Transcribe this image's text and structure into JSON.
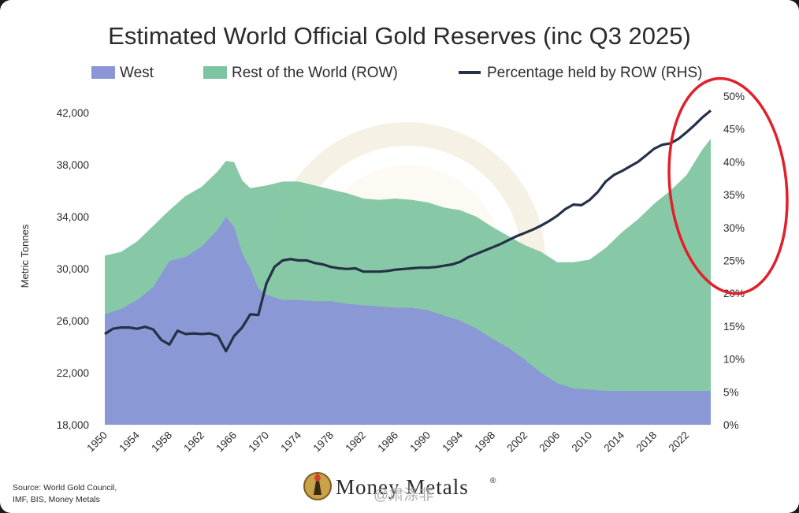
{
  "colors": {
    "west": "#8a96d8",
    "row": "#7dc4a0",
    "line": "#243147",
    "highlight": "#e0202a",
    "text": "#2b2b2b"
  },
  "source": {
    "line1": "Source: World Gold Council,",
    "line2": "IMF, BIS, Money Metals"
  },
  "logo": {
    "text": "Money Metals",
    "reg": "®"
  },
  "watermark": {
    "text": "@肃涤非"
  },
  "chart_data": {
    "type": "area",
    "title": "Estimated World Official Gold Reserves (inc Q3 2025)",
    "ylabel": "Metric Tonnes",
    "legend_placement": "top",
    "ylim": [
      18000,
      44000
    ],
    "y2lim": [
      0,
      50
    ],
    "xlim": [
      1950,
      2025
    ],
    "yticks": [
      18000,
      22000,
      26000,
      30000,
      34000,
      38000,
      42000
    ],
    "ytick_labels": [
      "18,000",
      "22,000",
      "26,000",
      "30,000",
      "34,000",
      "38,000",
      "42,000"
    ],
    "y2ticks": [
      0,
      5,
      10,
      15,
      20,
      25,
      30,
      35,
      40,
      45,
      50
    ],
    "y2tick_labels": [
      "0%",
      "5%",
      "10%",
      "15%",
      "20%",
      "25%",
      "30%",
      "35%",
      "40%",
      "45%",
      "50%"
    ],
    "xticks": [
      1950,
      1954,
      1958,
      1962,
      1966,
      1970,
      1974,
      1978,
      1982,
      1986,
      1990,
      1994,
      1998,
      2002,
      2006,
      2010,
      2014,
      2018,
      2022
    ],
    "xtick_labels": [
      "1950",
      "1954",
      "1958",
      "1962",
      "1966",
      "1970",
      "1974",
      "1978",
      "1982",
      "1986",
      "1990",
      "1994",
      "1998",
      "2002",
      "2006",
      "2010",
      "2014",
      "2018",
      "2022"
    ],
    "series": [
      {
        "name": "West",
        "kind": "area",
        "color": "#8a96d8",
        "points": [
          [
            1950,
            26500
          ],
          [
            1952,
            26900
          ],
          [
            1954,
            27600
          ],
          [
            1956,
            28600
          ],
          [
            1958,
            30600
          ],
          [
            1960,
            30900
          ],
          [
            1962,
            31700
          ],
          [
            1964,
            33000
          ],
          [
            1965,
            34000
          ],
          [
            1966,
            33200
          ],
          [
            1967,
            31200
          ],
          [
            1968,
            30000
          ],
          [
            1969,
            28500
          ],
          [
            1970,
            28000
          ],
          [
            1972,
            27600
          ],
          [
            1974,
            27600
          ],
          [
            1976,
            27500
          ],
          [
            1978,
            27500
          ],
          [
            1980,
            27300
          ],
          [
            1982,
            27200
          ],
          [
            1984,
            27100
          ],
          [
            1986,
            27000
          ],
          [
            1988,
            27000
          ],
          [
            1990,
            26800
          ],
          [
            1992,
            26400
          ],
          [
            1994,
            26000
          ],
          [
            1996,
            25400
          ],
          [
            1998,
            24600
          ],
          [
            2000,
            23900
          ],
          [
            2002,
            23000
          ],
          [
            2004,
            22000
          ],
          [
            2006,
            21200
          ],
          [
            2008,
            20800
          ],
          [
            2010,
            20700
          ],
          [
            2012,
            20600
          ],
          [
            2014,
            20600
          ],
          [
            2016,
            20600
          ],
          [
            2018,
            20600
          ],
          [
            2020,
            20600
          ],
          [
            2022,
            20600
          ],
          [
            2025,
            20600
          ]
        ]
      },
      {
        "name": "Rest of the World (ROW)",
        "kind": "area",
        "color": "#7dc4a0",
        "points": [
          [
            1950,
            31000
          ],
          [
            1952,
            31300
          ],
          [
            1954,
            32100
          ],
          [
            1956,
            33300
          ],
          [
            1958,
            34500
          ],
          [
            1960,
            35600
          ],
          [
            1962,
            36300
          ],
          [
            1964,
            37500
          ],
          [
            1965,
            38300
          ],
          [
            1966,
            38200
          ],
          [
            1967,
            36800
          ],
          [
            1968,
            36200
          ],
          [
            1970,
            36400
          ],
          [
            1972,
            36700
          ],
          [
            1974,
            36700
          ],
          [
            1976,
            36400
          ],
          [
            1978,
            36100
          ],
          [
            1980,
            35800
          ],
          [
            1982,
            35400
          ],
          [
            1984,
            35300
          ],
          [
            1986,
            35400
          ],
          [
            1988,
            35300
          ],
          [
            1990,
            35100
          ],
          [
            1992,
            34700
          ],
          [
            1994,
            34500
          ],
          [
            1996,
            34000
          ],
          [
            1998,
            33200
          ],
          [
            2000,
            32500
          ],
          [
            2002,
            31800
          ],
          [
            2004,
            31300
          ],
          [
            2006,
            30500
          ],
          [
            2008,
            30500
          ],
          [
            2010,
            30700
          ],
          [
            2012,
            31600
          ],
          [
            2014,
            32800
          ],
          [
            2016,
            33800
          ],
          [
            2018,
            35000
          ],
          [
            2020,
            36000
          ],
          [
            2022,
            37200
          ],
          [
            2024,
            39200
          ],
          [
            2025,
            40000
          ]
        ]
      },
      {
        "name": "Percentage held by ROW (RHS)",
        "kind": "line",
        "axis": "right",
        "color": "#243147",
        "points": [
          [
            1950,
            13.8
          ],
          [
            1951,
            14.6
          ],
          [
            1952,
            14.8
          ],
          [
            1953,
            14.8
          ],
          [
            1954,
            14.6
          ],
          [
            1955,
            14.9
          ],
          [
            1956,
            14.5
          ],
          [
            1957,
            12.9
          ],
          [
            1958,
            12.2
          ],
          [
            1959,
            14.3
          ],
          [
            1960,
            13.8
          ],
          [
            1961,
            13.9
          ],
          [
            1962,
            13.8
          ],
          [
            1963,
            13.9
          ],
          [
            1964,
            13.5
          ],
          [
            1965,
            11.2
          ],
          [
            1966,
            13.5
          ],
          [
            1967,
            14.8
          ],
          [
            1968,
            16.8
          ],
          [
            1969,
            16.7
          ],
          [
            1970,
            21.5
          ],
          [
            1971,
            24.0
          ],
          [
            1972,
            25.0
          ],
          [
            1973,
            25.2
          ],
          [
            1974,
            25.0
          ],
          [
            1975,
            25.0
          ],
          [
            1976,
            24.6
          ],
          [
            1977,
            24.4
          ],
          [
            1978,
            24.0
          ],
          [
            1979,
            23.8
          ],
          [
            1980,
            23.7
          ],
          [
            1981,
            23.8
          ],
          [
            1982,
            23.3
          ],
          [
            1983,
            23.3
          ],
          [
            1984,
            23.3
          ],
          [
            1985,
            23.4
          ],
          [
            1986,
            23.6
          ],
          [
            1987,
            23.7
          ],
          [
            1988,
            23.8
          ],
          [
            1989,
            23.9
          ],
          [
            1990,
            23.9
          ],
          [
            1991,
            24.0
          ],
          [
            1992,
            24.2
          ],
          [
            1993,
            24.4
          ],
          [
            1994,
            24.8
          ],
          [
            1995,
            25.5
          ],
          [
            1996,
            26.0
          ],
          [
            1997,
            26.5
          ],
          [
            1998,
            27.0
          ],
          [
            1999,
            27.5
          ],
          [
            2000,
            28.1
          ],
          [
            2001,
            28.7
          ],
          [
            2002,
            29.2
          ],
          [
            2003,
            29.7
          ],
          [
            2004,
            30.3
          ],
          [
            2005,
            31.0
          ],
          [
            2006,
            31.8
          ],
          [
            2007,
            32.8
          ],
          [
            2008,
            33.5
          ],
          [
            2009,
            33.4
          ],
          [
            2010,
            34.2
          ],
          [
            2011,
            35.4
          ],
          [
            2012,
            37.0
          ],
          [
            2013,
            38.0
          ],
          [
            2014,
            38.6
          ],
          [
            2015,
            39.3
          ],
          [
            2016,
            40.0
          ],
          [
            2017,
            41.0
          ],
          [
            2018,
            42.0
          ],
          [
            2019,
            42.6
          ],
          [
            2020,
            42.8
          ],
          [
            2021,
            43.5
          ],
          [
            2022,
            44.5
          ],
          [
            2023,
            45.6
          ],
          [
            2024,
            46.8
          ],
          [
            2025,
            47.8
          ]
        ]
      }
    ],
    "legend": [
      {
        "label": "West",
        "swatch": "rect",
        "color": "#8a96d8"
      },
      {
        "label": "Rest of the World (ROW)",
        "swatch": "rect",
        "color": "#7dc4a0"
      },
      {
        "label": "Percentage held by ROW (RHS)",
        "swatch": "line",
        "color": "#243147"
      }
    ],
    "annotation": {
      "shape": "ellipse",
      "color": "#e0202a",
      "around": "recent years, right-hand axis 20%-50%"
    }
  }
}
